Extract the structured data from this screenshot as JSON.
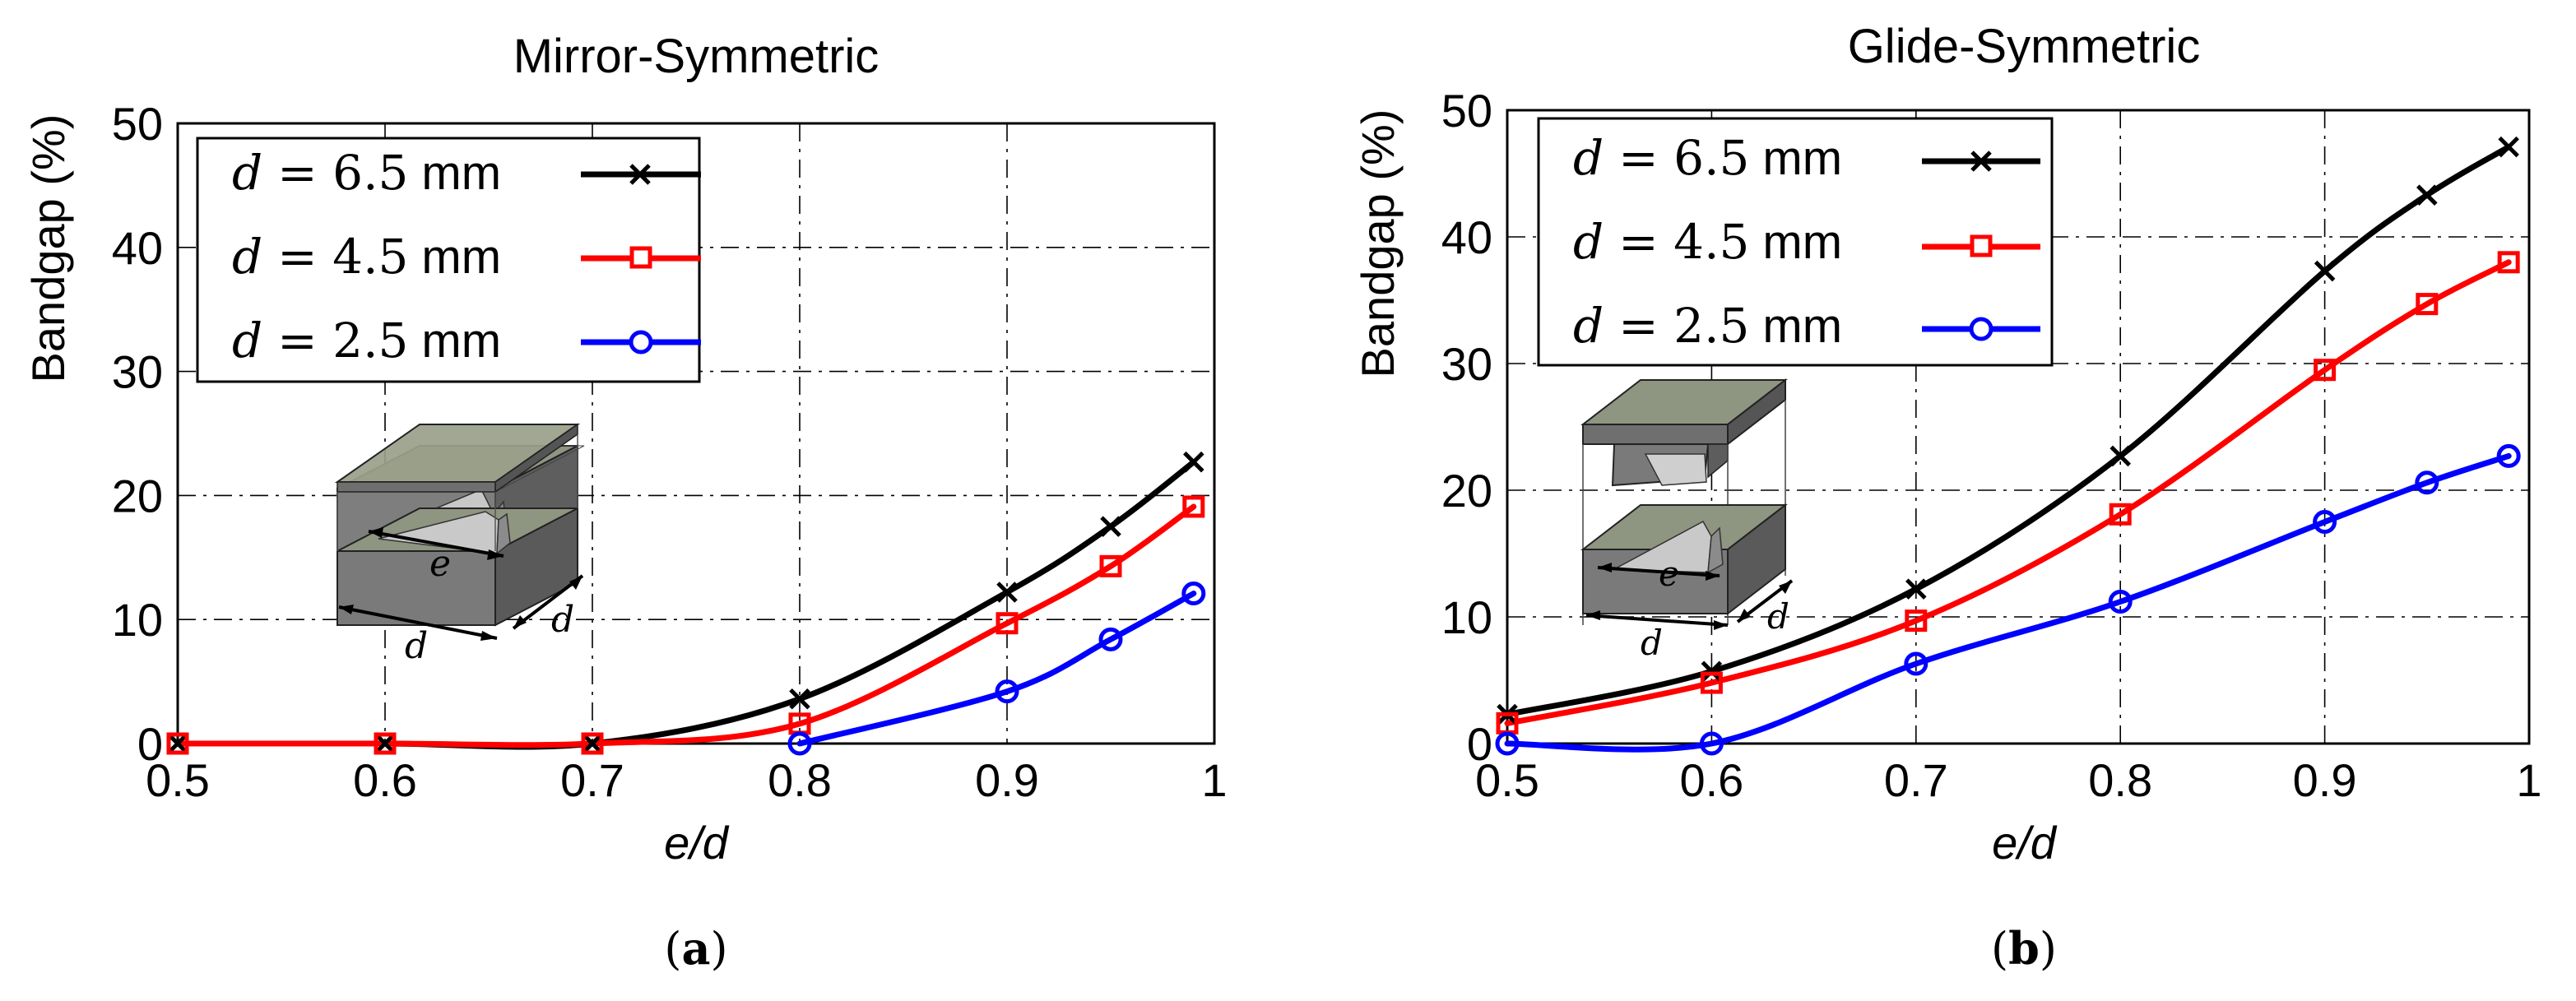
{
  "figure": {
    "panels": [
      {
        "caption_letter": "a",
        "caption_open": "(",
        "caption_close": ")"
      },
      {
        "caption_letter": "b",
        "caption_open": "(",
        "caption_close": ")"
      }
    ]
  },
  "chart_data": [
    {
      "type": "line",
      "title": "Mirror-Symmetric",
      "xlabel": "e/d",
      "ylabel": "Bandgap (%)",
      "xlim": [
        0.5,
        1.0
      ],
      "ylim": [
        0,
        50
      ],
      "xticks": [
        0.5,
        0.6,
        0.7,
        0.8,
        0.9,
        1.0
      ],
      "xtick_labels": [
        "0.5",
        "0.6",
        "0.7",
        "0.8",
        "0.9",
        "1"
      ],
      "yticks": [
        0,
        10,
        20,
        30,
        40,
        50
      ],
      "ytick_labels": [
        "0",
        "10",
        "20",
        "30",
        "40",
        "50"
      ],
      "grid": true,
      "legend_position": "top-left",
      "series": [
        {
          "name": "d = 6.5 mm",
          "legend_var": "d",
          "legend_value": "= 6.5",
          "legend_unit": "mm",
          "color": "#000000",
          "marker": "x",
          "x": [
            0.5,
            0.6,
            0.7,
            0.8,
            0.9,
            0.95,
            0.99
          ],
          "y": [
            0,
            0,
            0,
            3.6,
            12.2,
            17.5,
            22.7
          ]
        },
        {
          "name": "d = 4.5 mm",
          "legend_var": "d",
          "legend_value": "= 4.5",
          "legend_unit": "mm",
          "color": "#ff0000",
          "marker": "square",
          "x": [
            0.5,
            0.6,
            0.7,
            0.8,
            0.9,
            0.95,
            0.99
          ],
          "y": [
            0,
            0,
            0,
            1.6,
            9.7,
            14.3,
            19.1
          ]
        },
        {
          "name": "d = 2.5 mm",
          "legend_var": "d",
          "legend_value": "= 2.5",
          "legend_unit": "mm",
          "color": "#0000ff",
          "marker": "circle",
          "x": [
            0.8,
            0.9,
            0.95,
            0.99
          ],
          "y": [
            0,
            4.2,
            8.4,
            12.1
          ]
        }
      ],
      "inset": {
        "label_e": "e",
        "label_d1": "d",
        "label_d2": "d"
      }
    },
    {
      "type": "line",
      "title": "Glide-Symmetric",
      "xlabel": "e/d",
      "ylabel": "Bandgap (%)",
      "xlim": [
        0.5,
        1.0
      ],
      "ylim": [
        0,
        50
      ],
      "xticks": [
        0.5,
        0.6,
        0.7,
        0.8,
        0.9,
        1.0
      ],
      "xtick_labels": [
        "0.5",
        "0.6",
        "0.7",
        "0.8",
        "0.9",
        "1"
      ],
      "yticks": [
        0,
        10,
        20,
        30,
        40,
        50
      ],
      "ytick_labels": [
        "0",
        "10",
        "20",
        "30",
        "40",
        "50"
      ],
      "grid": true,
      "legend_position": "top-left",
      "series": [
        {
          "name": "d = 6.5 mm",
          "legend_var": "d",
          "legend_value": "= 6.5",
          "legend_unit": "mm",
          "color": "#000000",
          "marker": "x",
          "x": [
            0.5,
            0.6,
            0.7,
            0.8,
            0.9,
            0.95,
            0.99
          ],
          "y": [
            2.3,
            5.7,
            12.2,
            22.7,
            37.3,
            43.3,
            47.1
          ]
        },
        {
          "name": "d = 4.5 mm",
          "legend_var": "d",
          "legend_value": "= 4.5",
          "legend_unit": "mm",
          "color": "#ff0000",
          "marker": "square",
          "x": [
            0.5,
            0.6,
            0.7,
            0.8,
            0.9,
            0.95,
            0.99
          ],
          "y": [
            1.6,
            4.8,
            9.7,
            18.1,
            29.5,
            34.7,
            38.0
          ]
        },
        {
          "name": "d = 2.5 mm",
          "legend_var": "d",
          "legend_value": "= 2.5",
          "legend_unit": "mm",
          "color": "#0000ff",
          "marker": "circle",
          "x": [
            0.5,
            0.6,
            0.7,
            0.8,
            0.9,
            0.95,
            0.99
          ],
          "y": [
            0,
            0,
            6.3,
            11.2,
            17.5,
            20.6,
            22.7
          ]
        }
      ],
      "inset": {
        "label_e": "e",
        "label_d1": "d",
        "label_d2": "d"
      }
    }
  ]
}
